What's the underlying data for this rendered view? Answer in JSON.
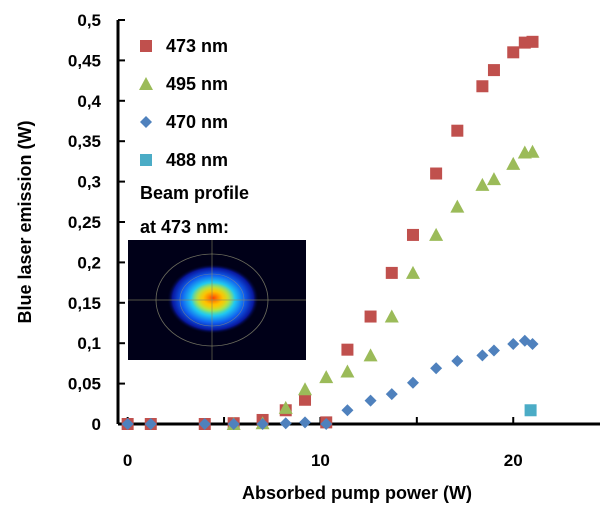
{
  "chart_data": {
    "type": "scatter",
    "xlabel": "Absorbed pump power (W)",
    "ylabel": "Blue laser emission (W)",
    "xlim": [
      -0.5,
      24.5
    ],
    "ylim": [
      0,
      0.5
    ],
    "x_ticks": [
      "0",
      "10",
      "20"
    ],
    "y_ticks": [
      "0",
      "0,05",
      "0,1",
      "0,15",
      "0,2",
      "0,25",
      "0,3",
      "0,35",
      "0,4",
      "0,45",
      "0,5"
    ],
    "legend_position": "top-left",
    "grid": false,
    "series": [
      {
        "name": "473 nm",
        "marker": "square",
        "color": "#c0504d",
        "points": [
          [
            0,
            0
          ],
          [
            1.2,
            0
          ],
          [
            4,
            0
          ],
          [
            5.5,
            0.001
          ],
          [
            7,
            0.005
          ],
          [
            8.2,
            0.017
          ],
          [
            9.2,
            0.03
          ],
          [
            10.3,
            0.002
          ],
          [
            11.4,
            0.092
          ],
          [
            12.6,
            0.133
          ],
          [
            13.7,
            0.187
          ],
          [
            14.8,
            0.234
          ],
          [
            16,
            0.31
          ],
          [
            17.1,
            0.363
          ],
          [
            18.4,
            0.418
          ],
          [
            19,
            0.438
          ],
          [
            20,
            0.46
          ],
          [
            20.6,
            0.472
          ],
          [
            21,
            0.473
          ]
        ]
      },
      {
        "name": "495 nm",
        "marker": "triangle",
        "color": "#9bbb59",
        "points": [
          [
            5.5,
            0
          ],
          [
            7,
            0.001
          ],
          [
            8.2,
            0.02
          ],
          [
            9.2,
            0.043
          ],
          [
            10.3,
            0.058
          ],
          [
            11.4,
            0.065
          ],
          [
            12.6,
            0.085
          ],
          [
            13.7,
            0.133
          ],
          [
            14.8,
            0.187
          ],
          [
            16,
            0.234
          ],
          [
            17.1,
            0.269
          ],
          [
            18.4,
            0.296
          ],
          [
            19,
            0.303
          ],
          [
            20,
            0.322
          ],
          [
            20.6,
            0.336
          ],
          [
            21,
            0.337
          ]
        ]
      },
      {
        "name": "470 nm",
        "marker": "diamond",
        "color": "#4f81bd",
        "points": [
          [
            0,
            0
          ],
          [
            1.2,
            0
          ],
          [
            4,
            0
          ],
          [
            5.5,
            0
          ],
          [
            7,
            0
          ],
          [
            8.2,
            0.001
          ],
          [
            9.2,
            0.002
          ],
          [
            10.3,
            0
          ],
          [
            11.4,
            0.017
          ],
          [
            12.6,
            0.029
          ],
          [
            13.7,
            0.037
          ],
          [
            14.8,
            0.051
          ],
          [
            16,
            0.069
          ],
          [
            17.1,
            0.078
          ],
          [
            18.4,
            0.085
          ],
          [
            19,
            0.091
          ],
          [
            20,
            0.099
          ],
          [
            20.6,
            0.103
          ],
          [
            21,
            0.099
          ]
        ]
      },
      {
        "name": "488 nm",
        "marker": "square",
        "color": "#4bacc6",
        "points": [
          [
            20.9,
            0.017
          ]
        ]
      }
    ],
    "inset": {
      "label_line1": "Beam profile",
      "label_line2": "at 473 nm:"
    }
  }
}
